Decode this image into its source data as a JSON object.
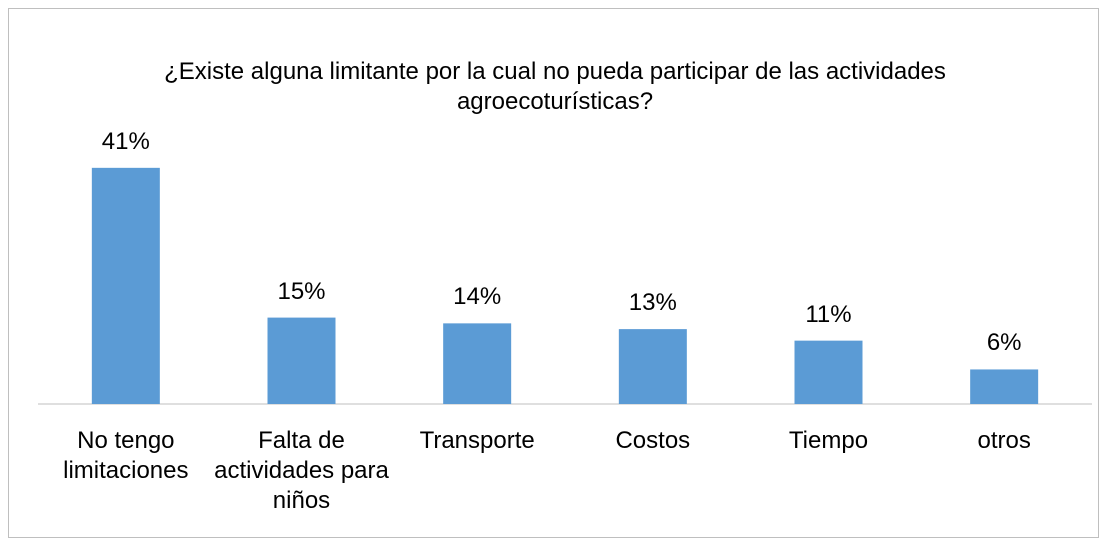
{
  "chart_data": {
    "type": "bar",
    "title": "¿Existe alguna limitante por la cual no pueda participar de las actividades agroecoturísticas?",
    "categories": [
      "No tengo limitaciones",
      "Falta de actividades para niños",
      "Transporte",
      "Costos",
      "Tiempo",
      "otros"
    ],
    "values": [
      41,
      15,
      14,
      13,
      11,
      6
    ],
    "value_labels": [
      "41%",
      "15%",
      "14%",
      "13%",
      "11%",
      "6%"
    ],
    "color": "#5b9bd5"
  }
}
